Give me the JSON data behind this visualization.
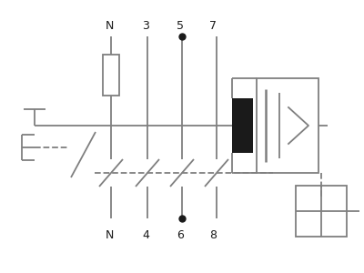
{
  "bg_color": "#ffffff",
  "line_color": "#7f7f7f",
  "dark_color": "#1a1a1a",
  "terminal_labels_top": [
    [
      "N",
      0.3
    ],
    [
      "3",
      0.4
    ],
    [
      "5",
      0.495
    ],
    [
      "7",
      0.585
    ]
  ],
  "terminal_labels_bot": [
    [
      "N",
      0.3
    ],
    [
      "4",
      0.4
    ],
    [
      "6",
      0.495
    ],
    [
      "8",
      0.585
    ]
  ],
  "figsize": [
    4.0,
    3.0
  ],
  "dpi": 100
}
